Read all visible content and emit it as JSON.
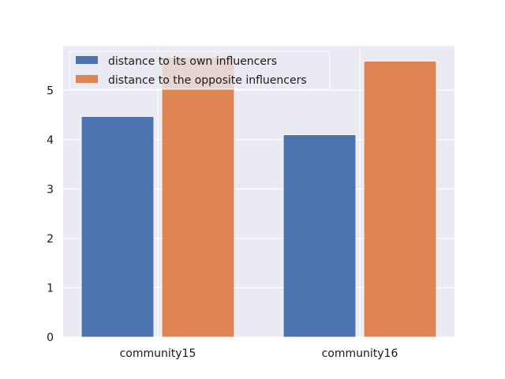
{
  "chart_data": {
    "type": "bar",
    "categories": [
      "community15",
      "community16"
    ],
    "series": [
      {
        "name": "distance to its own influencers",
        "values": [
          4.47,
          4.1
        ],
        "color": "#4c72b0"
      },
      {
        "name": "distance to the opposite influencers",
        "values": [
          5.67,
          5.59
        ],
        "color": "#dd8452"
      }
    ],
    "ylim": [
      0,
      5.9
    ],
    "yticks": [
      0,
      1,
      2,
      3,
      4,
      5
    ],
    "grid": true,
    "legend_position": "top-left",
    "title": "",
    "xlabel": "",
    "ylabel": ""
  },
  "colors": {
    "plot_background": "#eaeaf2",
    "grid": "#ffffff"
  }
}
